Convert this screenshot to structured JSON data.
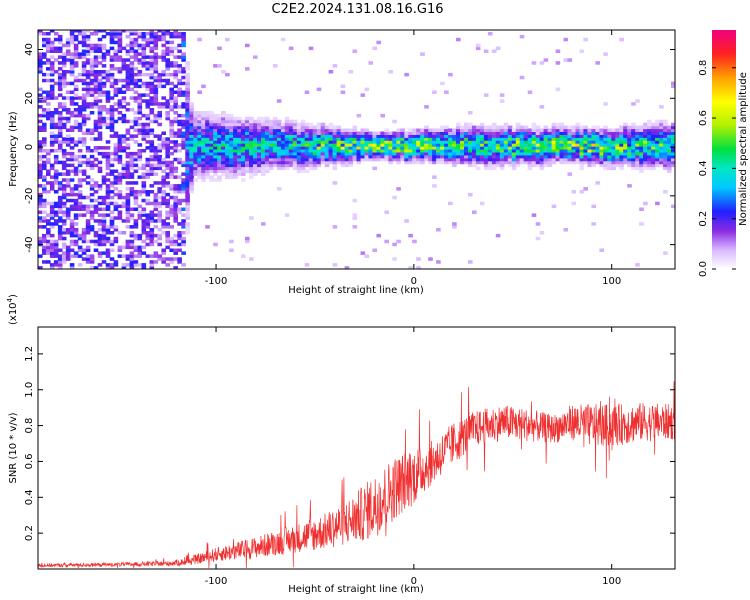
{
  "title": "C2E2.2024.131.08.16.G16",
  "chart_data": [
    {
      "type": "heatmap",
      "xlabel": "Height of straight line (km)",
      "ylabel": "Frequency (Hz)",
      "xlim": [
        -190,
        132
      ],
      "ylim": [
        -50,
        48
      ],
      "x_ticks": [
        "-100",
        "0",
        "100"
      ],
      "x_tick_values": [
        -100,
        0,
        100
      ],
      "y_ticks": [
        "-40",
        "-20",
        "0",
        "20",
        "40"
      ],
      "y_tick_values": [
        -40,
        -20,
        0,
        20,
        40
      ],
      "colorbar": {
        "label": "Normalized spectral amplitude",
        "range": [
          0,
          0.95
        ],
        "ticks": [
          "0.0",
          "0.2",
          "0.4",
          "0.6",
          "0.8"
        ],
        "tick_values": [
          0.0,
          0.2,
          0.4,
          0.6,
          0.8
        ]
      },
      "band": {
        "center_hz": 0,
        "profile": [
          {
            "x": -190,
            "half_width": 48,
            "amp": 0.18
          },
          {
            "x": -118,
            "half_width": 48,
            "amp": 0.16
          },
          {
            "x": -112,
            "half_width": 10,
            "amp": 0.35
          },
          {
            "x": -60,
            "half_width": 7,
            "amp": 0.38
          },
          {
            "x": -20,
            "half_width": 4,
            "amp": 0.55
          },
          {
            "x": 40,
            "half_width": 6,
            "amp": 0.45
          },
          {
            "x": 80,
            "half_width": 5,
            "amp": 0.55
          },
          {
            "x": 132,
            "half_width": 7,
            "amp": 0.4
          }
        ]
      }
    },
    {
      "type": "line",
      "xlabel": "Height of straight line (km)",
      "ylabel": "SNR (10 * v/v)",
      "multiplier": "(x10",
      "multiplier_exp": "4",
      "multiplier_close": ")",
      "xlim": [
        -190,
        132
      ],
      "ylim": [
        0,
        1.35
      ],
      "x_ticks": [
        "-100",
        "0",
        "100"
      ],
      "x_tick_values": [
        -100,
        0,
        100
      ],
      "y_ticks": [
        "0.2",
        "0.4",
        "0.6",
        "0.8",
        "1.0",
        "1.2"
      ],
      "y_tick_values": [
        0.2,
        0.4,
        0.6,
        0.8,
        1.0,
        1.2
      ],
      "color": "#f03030",
      "series": [
        {
          "x": [
            -190,
            -150,
            -125,
            -115,
            -100,
            -80,
            -60,
            -45,
            -30,
            -20,
            -10,
            0,
            10,
            20,
            30,
            45,
            60,
            70,
            80,
            90,
            100,
            115,
            132
          ],
          "mean": [
            0.02,
            0.025,
            0.03,
            0.04,
            0.08,
            0.12,
            0.17,
            0.21,
            0.28,
            0.35,
            0.45,
            0.52,
            0.6,
            0.7,
            0.78,
            0.82,
            0.8,
            0.78,
            0.82,
            0.8,
            0.8,
            0.82,
            0.82
          ],
          "noise": [
            0.01,
            0.01,
            0.015,
            0.02,
            0.04,
            0.06,
            0.08,
            0.1,
            0.14,
            0.18,
            0.18,
            0.16,
            0.12,
            0.12,
            0.1,
            0.1,
            0.09,
            0.08,
            0.1,
            0.12,
            0.12,
            0.11,
            0.1
          ]
        }
      ]
    }
  ]
}
